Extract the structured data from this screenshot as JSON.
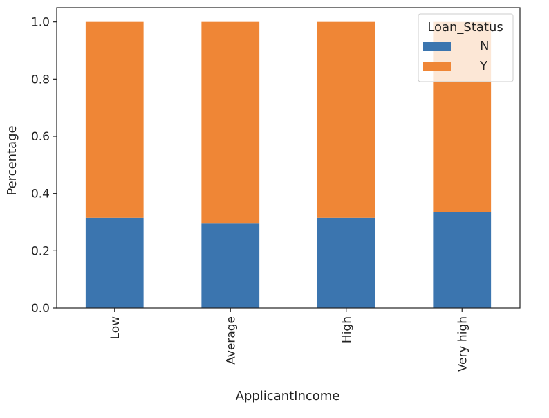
{
  "chart_data": {
    "type": "bar",
    "stacked": true,
    "categories": [
      "Low",
      "Average",
      "High",
      "Very high"
    ],
    "series": [
      {
        "name": "N",
        "values": [
          0.315,
          0.297,
          0.315,
          0.335
        ]
      },
      {
        "name": "Y",
        "values": [
          0.685,
          0.703,
          0.685,
          0.665
        ]
      }
    ],
    "xlabel": "ApplicantIncome",
    "ylabel": "Percentage",
    "ylim": [
      0.0,
      1.05
    ],
    "yticks": [
      "0.0",
      "0.2",
      "0.4",
      "0.6",
      "0.8",
      "1.0"
    ],
    "grid": false,
    "legend": {
      "title": "Loan_Status",
      "position": "top-right"
    },
    "colors": {
      "N": "#3b75af",
      "Y": "#ef8636"
    }
  }
}
